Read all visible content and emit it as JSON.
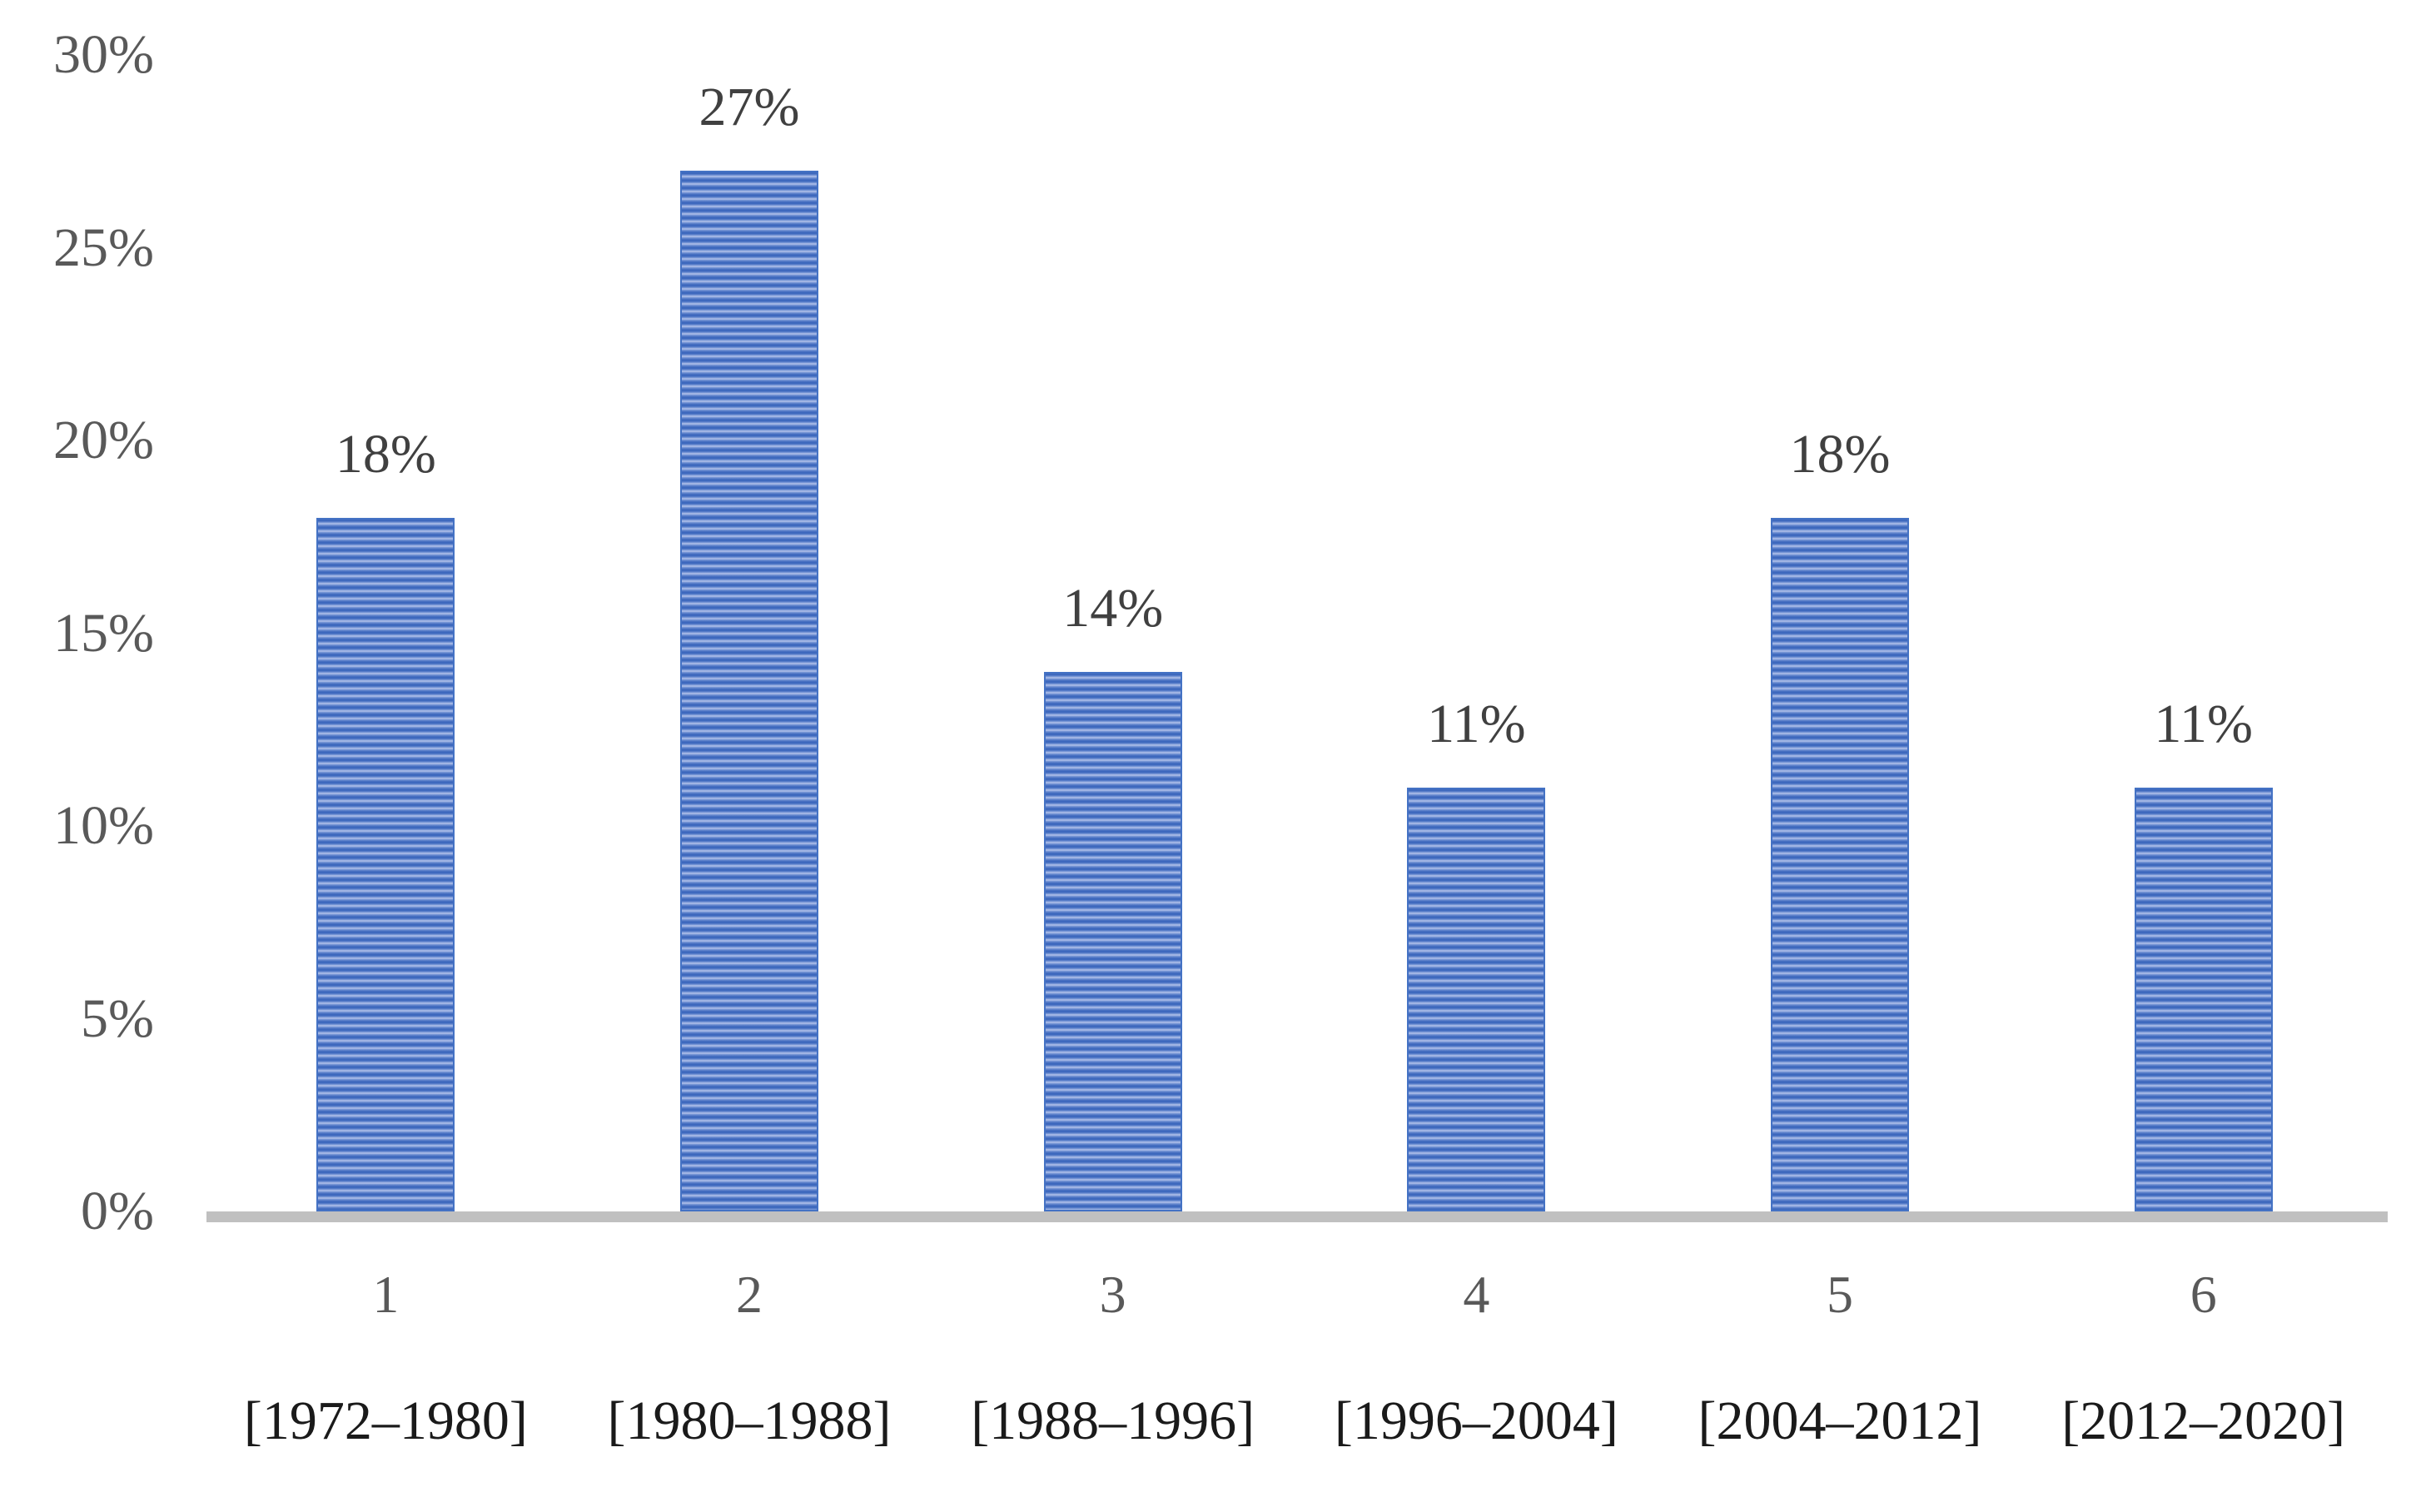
{
  "chart_data": {
    "type": "bar",
    "title": "",
    "xlabel": "",
    "ylabel": "",
    "categories": [
      "1",
      "2",
      "3",
      "4",
      "5",
      "6"
    ],
    "category_ranges": [
      "[1972–1980]",
      "[1980–1988]",
      "[1988–1996]",
      "[1996–2004]",
      "[2004–2012]",
      "[2012–2020]"
    ],
    "values": [
      18,
      27,
      14,
      11,
      18,
      11
    ],
    "bar_labels": [
      "18%",
      "27%",
      "14%",
      "11%",
      "18%",
      "11%"
    ],
    "ylim": [
      0,
      30
    ],
    "y_ticks": [
      {
        "label": "30%",
        "value": 30
      },
      {
        "label": "25%",
        "value": 25
      },
      {
        "label": "20%",
        "value": 20
      },
      {
        "label": "15%",
        "value": 15
      },
      {
        "label": "10%",
        "value": 10
      },
      {
        "label": "5%",
        "value": 5
      },
      {
        "label": "0%",
        "value": 0
      }
    ],
    "grid": false,
    "legend": false,
    "bar_pattern": "light-horizontal-stripes",
    "colors": {
      "background": "#FFFFFF",
      "bar_stripe_dark": "#3D68BD",
      "bar_stripe_mid": "#7191D3",
      "bar_stripe_light": "#B5C4EB",
      "bar_border": "#4472C4",
      "axis_line": "#C0C0C0",
      "axis_text": "#595959",
      "bar_label_text": "#404040",
      "category_text": "#595959",
      "range_text": "#1A1A1A"
    }
  }
}
